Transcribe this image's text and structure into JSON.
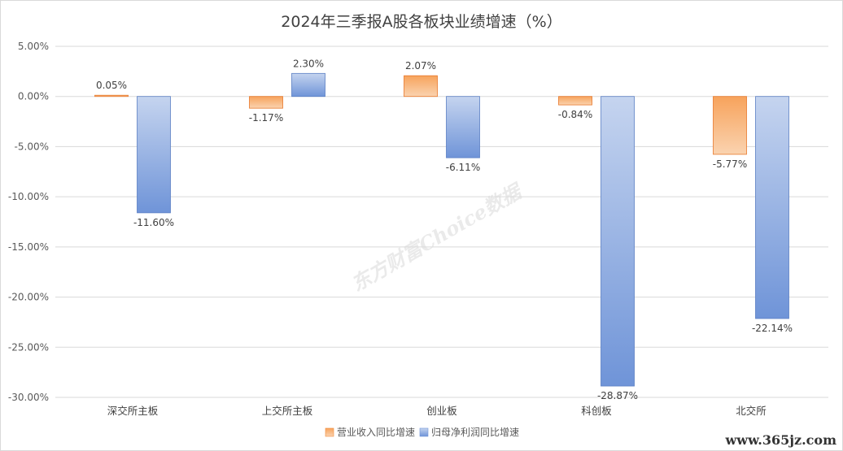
{
  "chart_data": {
    "type": "bar",
    "title": "2024年三季报A股各板块业绩增速（%）",
    "categories": [
      "深交所主板",
      "上交所主板",
      "创业板",
      "科创板",
      "北交所"
    ],
    "series": [
      {
        "name": "营业收入同比增速",
        "values": [
          0.05,
          -1.17,
          2.07,
          -0.84,
          -5.77
        ],
        "labels": [
          "0.05%",
          "-1.17%",
          "2.07%",
          "-0.84%",
          "-5.77%"
        ],
        "color": "#F08C3C"
      },
      {
        "name": "归母净利润同比增速",
        "values": [
          -11.6,
          2.3,
          -6.11,
          -28.87,
          -22.14
        ],
        "labels": [
          "-11.60%",
          "2.30%",
          "-6.11%",
          "-28.87%",
          "-22.14%"
        ],
        "color": "#6F94D8"
      }
    ],
    "y_ticks": [
      5,
      0,
      -5,
      -10,
      -15,
      -20,
      -25,
      -30
    ],
    "y_tick_labels": [
      "5.00%",
      "0.00%",
      "-5.00%",
      "-10.00%",
      "-15.00%",
      "-20.00%",
      "-25.00%",
      "-30.00%"
    ],
    "ylim": [
      -30,
      5
    ],
    "grid": true,
    "legend_position": "bottom"
  },
  "watermark": {
    "text": "东方财富Choice数据"
  },
  "footer": {
    "site": "www.365jz.com"
  }
}
